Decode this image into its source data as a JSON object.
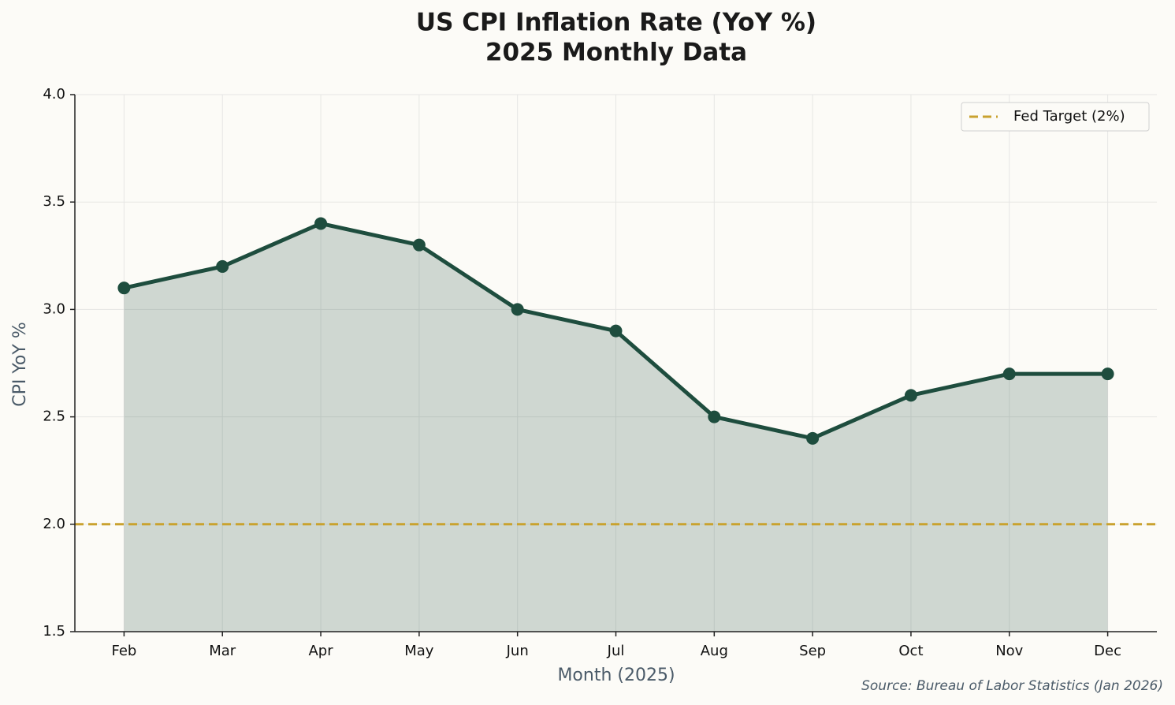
{
  "chart_data": {
    "type": "line",
    "title": "US CPI Inflation Rate (YoY %)",
    "subtitle": "2025 Monthly Data",
    "x_label": "Month (2025)",
    "y_label": "CPI YoY %",
    "source": "Source: Bureau of Labor Statistics (Jan 2026)",
    "categories": [
      "Feb",
      "Mar",
      "Apr",
      "May",
      "Jun",
      "Jul",
      "Aug",
      "Sep",
      "Oct",
      "Nov",
      "Dec"
    ],
    "series": [
      {
        "color": "#1e4d3e",
        "values": [
          3.1,
          3.2,
          3.4,
          3.3,
          3.0,
          2.9,
          2.5,
          2.4,
          2.6,
          2.7,
          2.7
        ],
        "area": true
      }
    ],
    "reference_lines": [
      {
        "value": 2,
        "label": "Fed Target (2%)",
        "color": "#c9a22f",
        "dashed": true
      }
    ],
    "ylim": [
      1.5,
      4.0
    ],
    "yticks": [
      1.5,
      {
        "value": 2,
        "label": "2.0"
      },
      2.5,
      {
        "value": 3,
        "label": "3.0"
      },
      3.5,
      {
        "value": 4,
        "label": "4.0"
      }
    ],
    "grid": true,
    "legend": "upper-right"
  }
}
